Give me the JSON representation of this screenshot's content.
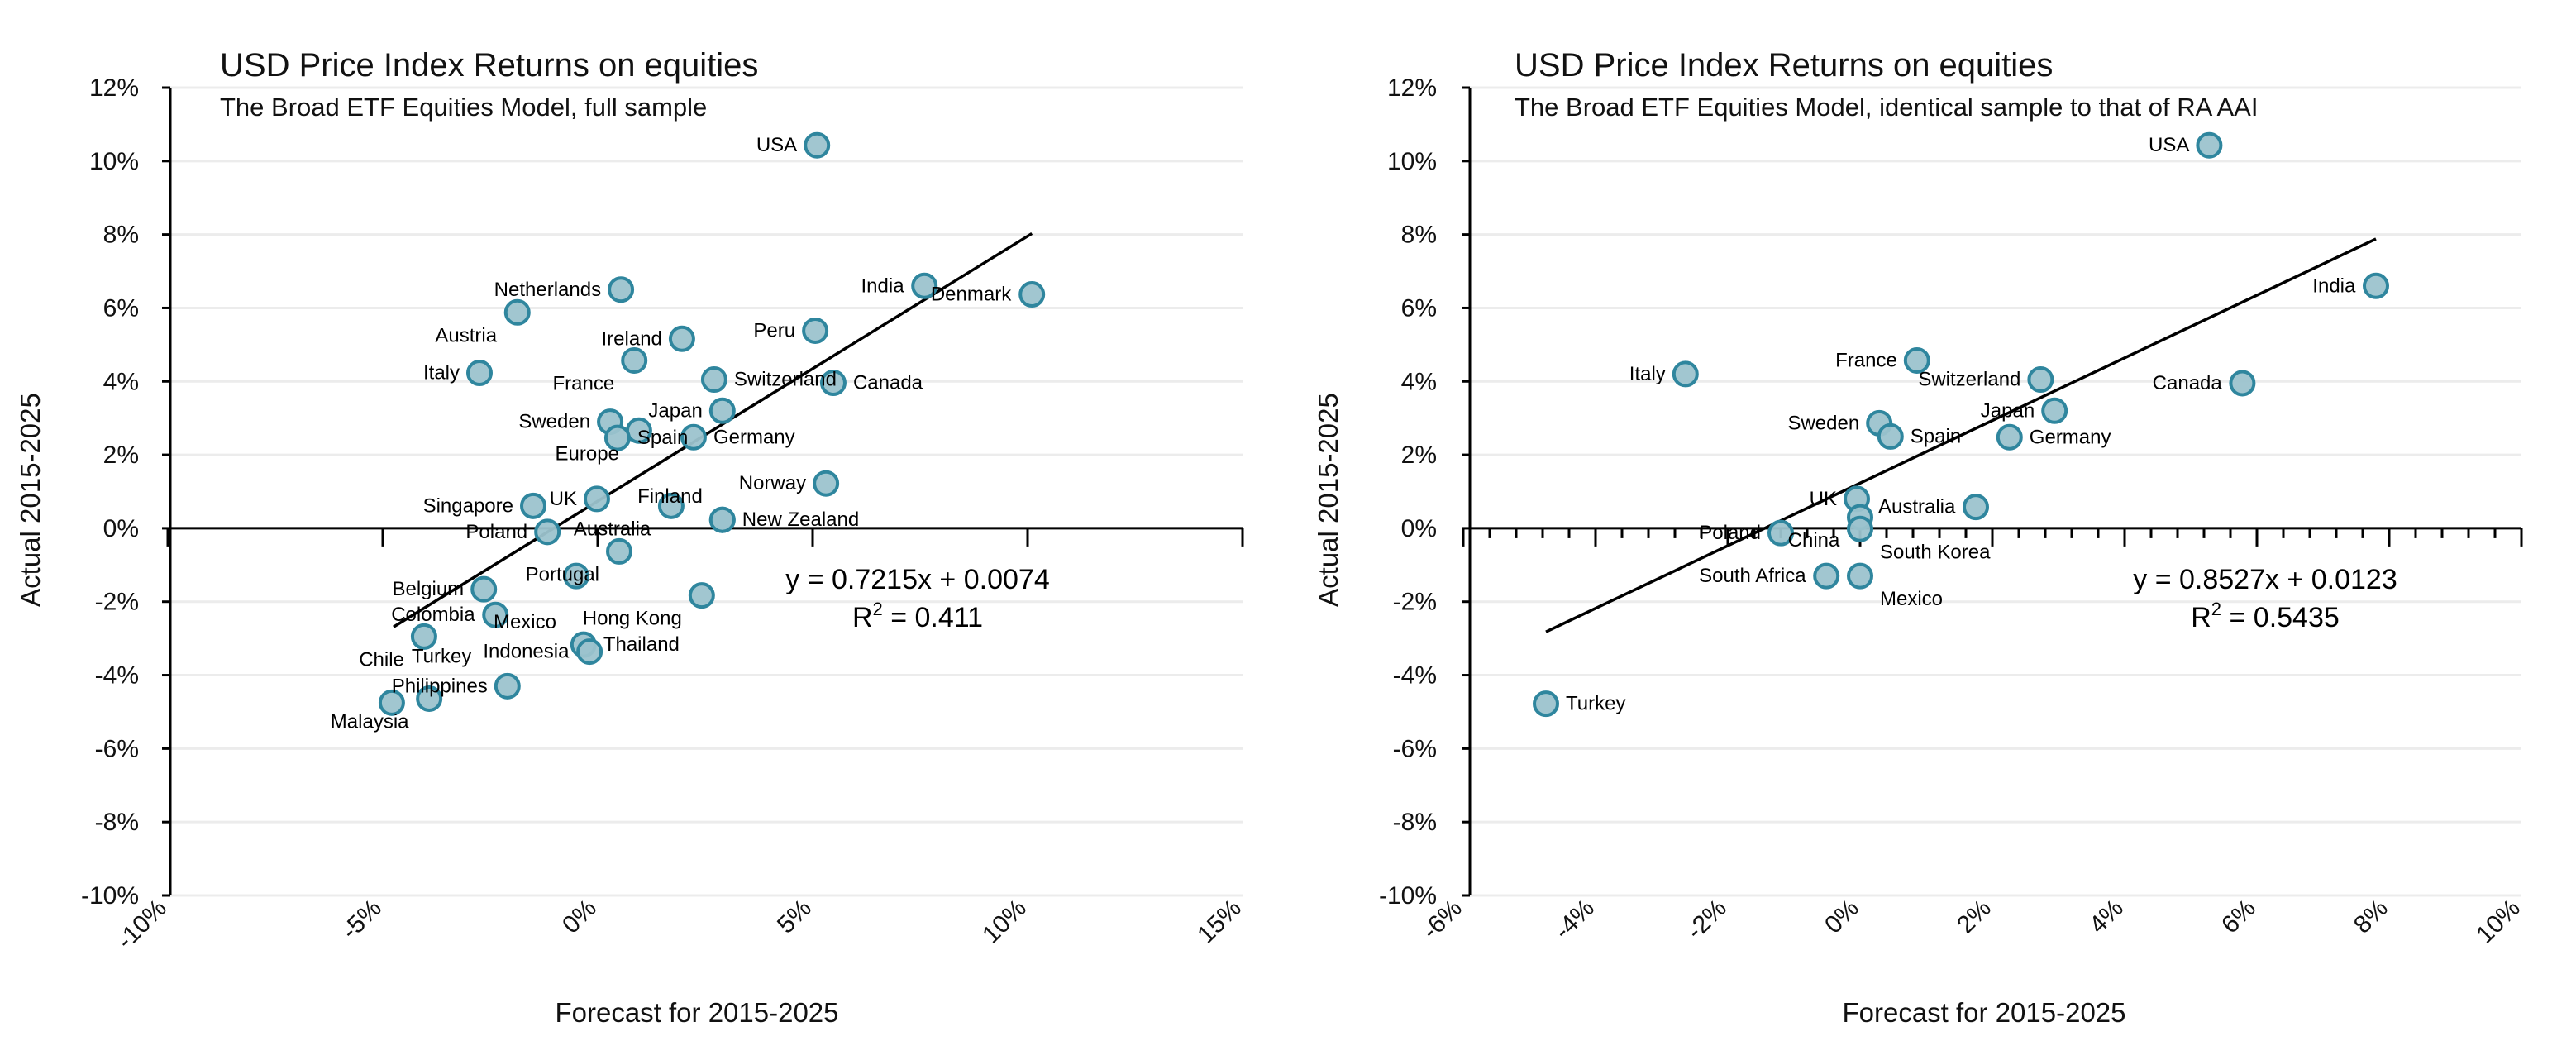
{
  "chart_data": [
    {
      "type": "scatter",
      "title": "USD Price Index Returns on equities",
      "subtitle": "The Broad ETF Equities Model, full sample",
      "xlabel": "Forecast for 2015-2025",
      "ylabel": "Actual 2015-2025",
      "xlim": [
        -10,
        15
      ],
      "ylim": [
        -10,
        12
      ],
      "xticks": [
        "-10%",
        "-5%",
        "0%",
        "5%",
        "10%",
        "15%"
      ],
      "xtick_values": [
        -10,
        -5,
        0,
        5,
        10,
        15
      ],
      "yticks": [
        "12%",
        "10%",
        "8%",
        "6%",
        "4%",
        "2%",
        "0%",
        "-2%",
        "-4%",
        "-6%",
        "-8%",
        "-10%"
      ],
      "ytick_values": [
        12,
        10,
        8,
        6,
        4,
        2,
        0,
        -2,
        -4,
        -6,
        -8,
        -10
      ],
      "minor_step": 5,
      "equation": "y = 0.7215x + 0.0074",
      "r2_label": "R",
      "r2_value": " = 0.411",
      "trend": {
        "slope": 0.7215,
        "intercept": 0.74,
        "x_range": [
          -4.75,
          10.1
        ]
      },
      "colors": {
        "fill": "#9cc3ce",
        "stroke": "#2f869e"
      },
      "points": [
        {
          "label": "USA",
          "x": 5.1,
          "y": 10.43
        },
        {
          "label": "India",
          "x": 7.6,
          "y": 6.6
        },
        {
          "label": "Denmark",
          "x": 10.1,
          "y": 6.37
        },
        {
          "label": "Netherlands",
          "x": 0.54,
          "y": 6.5
        },
        {
          "label": "Austria",
          "x": -1.87,
          "y": 5.88
        },
        {
          "label": "Peru",
          "x": 5.06,
          "y": 5.38
        },
        {
          "label": "Ireland",
          "x": 1.96,
          "y": 5.16
        },
        {
          "label": "France",
          "x": 0.85,
          "y": 4.57
        },
        {
          "label": "Italy",
          "x": -2.75,
          "y": 4.23
        },
        {
          "label": "Switzerland",
          "x": 2.71,
          "y": 4.05
        },
        {
          "label": "Canada",
          "x": 5.48,
          "y": 3.96
        },
        {
          "label": "Japan",
          "x": 2.9,
          "y": 3.2
        },
        {
          "label": "Sweden",
          "x": 0.29,
          "y": 2.9
        },
        {
          "label": "Europe",
          "x": 0.96,
          "y": 2.66
        },
        {
          "label": "Spain",
          "x": 0.46,
          "y": 2.46
        },
        {
          "label": "Germany",
          "x": 2.23,
          "y": 2.48
        },
        {
          "label": "Norway",
          "x": 5.31,
          "y": 1.22
        },
        {
          "label": "UK",
          "x": -0.02,
          "y": 0.8
        },
        {
          "label": "Singapore",
          "x": -1.5,
          "y": 0.61
        },
        {
          "label": "Australia",
          "x": 1.71,
          "y": 0.61
        },
        {
          "label": "New Zealand",
          "x": 2.9,
          "y": 0.23
        },
        {
          "label": "Finland",
          "x": 2.9,
          "y": 0.23
        },
        {
          "label": "Poland",
          "x": -1.17,
          "y": -0.1
        },
        {
          "label": "Portugal",
          "x": 0.5,
          "y": -0.63
        },
        {
          "label": "Mexico",
          "x": -0.5,
          "y": -1.3
        },
        {
          "label": "Belgium",
          "x": -2.65,
          "y": -1.66
        },
        {
          "label": "Hong Kong",
          "x": 2.42,
          "y": -1.83
        },
        {
          "label": "Colombia",
          "x": -2.38,
          "y": -2.36
        },
        {
          "label": "Chile",
          "x": -4.04,
          "y": -2.95
        },
        {
          "label": "Thailand",
          "x": -0.33,
          "y": -3.17
        },
        {
          "label": "Indonesia",
          "x": -0.19,
          "y": -3.36
        },
        {
          "label": "Philippines",
          "x": -2.1,
          "y": -4.3
        },
        {
          "label": "Malaysia",
          "x": -3.92,
          "y": -4.64
        },
        {
          "label": "Turkey",
          "x": -4.79,
          "y": -4.75
        }
      ]
    },
    {
      "type": "scatter",
      "title": "USD Price Index Returns on equities",
      "subtitle": "The Broad ETF Equities Model, identical sample to that of RA AAI",
      "xlabel": "Forecast for 2015-2025",
      "ylabel": "Actual 2015-2025",
      "xlim": [
        -6,
        10
      ],
      "ylim": [
        -10,
        12
      ],
      "xticks": [
        "-6%",
        "-4%",
        "-2%",
        "0%",
        "2%",
        "4%",
        "6%",
        "8%",
        "10%"
      ],
      "xtick_values": [
        -6,
        -4,
        -2,
        0,
        2,
        4,
        6,
        8,
        10
      ],
      "yticks": [
        "12%",
        "10%",
        "8%",
        "6%",
        "4%",
        "2%",
        "0%",
        "-2%",
        "-4%",
        "-6%",
        "-8%",
        "-10%"
      ],
      "ytick_values": [
        12,
        10,
        8,
        6,
        4,
        2,
        0,
        -2,
        -4,
        -6,
        -8,
        -10
      ],
      "minor_step": 0.4,
      "equation": "y = 0.8527x + 0.0123",
      "r2_label": "R",
      "r2_value": " = 0.5435",
      "trend": {
        "slope": 0.8527,
        "intercept": 1.23,
        "x_range": [
          -4.75,
          7.8
        ]
      },
      "colors": {
        "fill": "#9cc3ce",
        "stroke": "#2f869e"
      },
      "points": [
        {
          "label": "USA",
          "x": 5.28,
          "y": 10.43
        },
        {
          "label": "India",
          "x": 7.8,
          "y": 6.6
        },
        {
          "label": "Italy",
          "x": -2.64,
          "y": 4.2
        },
        {
          "label": "France",
          "x": 0.86,
          "y": 4.57
        },
        {
          "label": "Switzerland",
          "x": 2.73,
          "y": 4.05
        },
        {
          "label": "Canada",
          "x": 5.78,
          "y": 3.95
        },
        {
          "label": "Japan",
          "x": 2.94,
          "y": 3.2
        },
        {
          "label": "Sweden",
          "x": 0.29,
          "y": 2.86
        },
        {
          "label": "Spain",
          "x": 0.46,
          "y": 2.5
        },
        {
          "label": "Germany",
          "x": 2.26,
          "y": 2.48
        },
        {
          "label": "UK",
          "x": -0.05,
          "y": 0.8
        },
        {
          "label": "Australia",
          "x": 1.75,
          "y": 0.58
        },
        {
          "label": "China",
          "x": 0.0,
          "y": 0.3
        },
        {
          "label": "South Korea",
          "x": 0.0,
          "y": -0.02
        },
        {
          "label": "Poland",
          "x": -1.2,
          "y": -0.13
        },
        {
          "label": "South Africa",
          "x": -0.51,
          "y": -1.3
        },
        {
          "label": "Mexico",
          "x": 0.0,
          "y": -1.3
        },
        {
          "label": "Turkey",
          "x": -4.75,
          "y": -4.78
        }
      ]
    }
  ]
}
